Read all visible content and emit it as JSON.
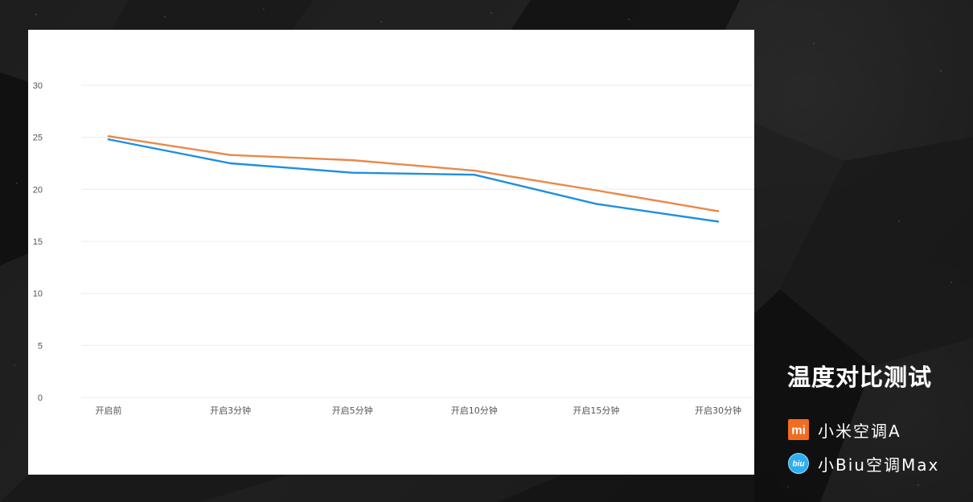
{
  "chart_data": {
    "type": "line",
    "categories": [
      "开启前",
      "开启3分钟",
      "开启5分钟",
      "开启10分钟",
      "开启15分钟",
      "开启30分钟"
    ],
    "series": [
      {
        "name": "小米空调A",
        "values": [
          25.1,
          23.3,
          22.8,
          21.8,
          19.9,
          17.9
        ],
        "color": "#e8894a",
        "icon": "xiaomi-logo-icon"
      },
      {
        "name": "小Biu空调Max",
        "values": [
          24.8,
          22.5,
          21.6,
          21.4,
          18.6,
          16.9
        ],
        "color": "#1f8fe0",
        "icon": "biu-logo-icon"
      }
    ],
    "title": "温度对比测试",
    "xlabel": "",
    "ylabel": "",
    "ylim": [
      0,
      30
    ],
    "yticks": [
      0,
      5,
      10,
      15,
      20,
      25,
      30
    ],
    "grid": true,
    "legend": "right"
  },
  "colors": {
    "background": "#151515",
    "panel": "#ffffff",
    "grid": "#ececec",
    "tick_text": "#555555",
    "legend_text": "#ffffff",
    "xiaomi_orange": "#f26d21",
    "biu_blue": "#2eaef0"
  },
  "logos": {
    "xiaomi_text": "mi",
    "biu_text": "biu"
  }
}
